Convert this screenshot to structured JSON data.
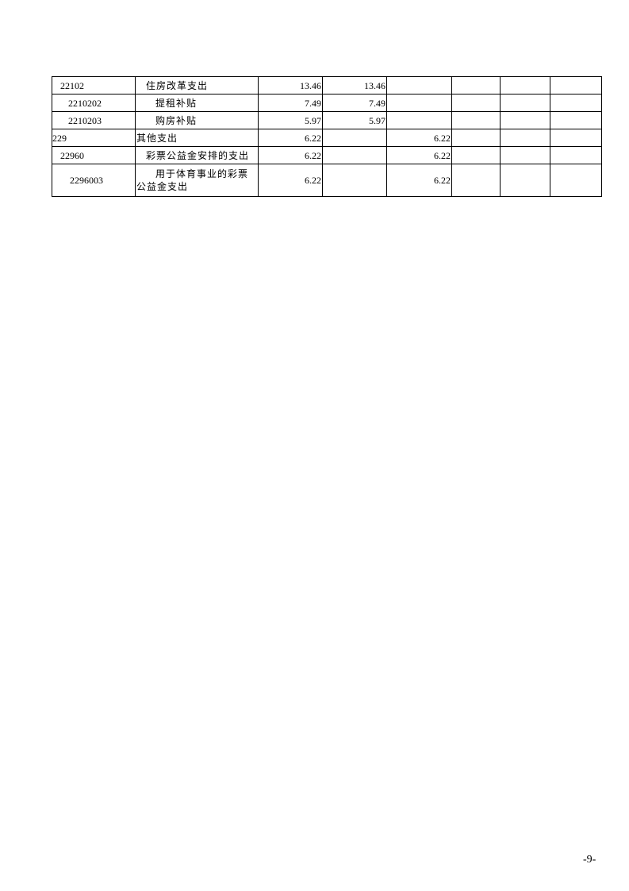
{
  "rows": [
    {
      "code": "22102",
      "code_indent": 1,
      "name": "住房改革支出",
      "name_indent": 1,
      "c1": "13.46",
      "c2": "13.46",
      "c3": ""
    },
    {
      "code": "2210202",
      "code_indent": 2,
      "name": "提租补贴",
      "name_indent": 2,
      "c1": "7.49",
      "c2": "7.49",
      "c3": ""
    },
    {
      "code": "2210203",
      "code_indent": 2,
      "name": "购房补贴",
      "name_indent": 2,
      "c1": "5.97",
      "c2": "5.97",
      "c3": ""
    },
    {
      "code": "229",
      "code_indent": 0,
      "name": "其他支出",
      "name_indent": 0,
      "c1": "6.22",
      "c2": "",
      "c3": "6.22"
    },
    {
      "code": "22960",
      "code_indent": 1,
      "name": "彩票公益金安排的支出",
      "name_indent": 1,
      "c1": "6.22",
      "c2": "",
      "c3": "6.22"
    },
    {
      "code": "2296003",
      "code_indent": 2,
      "name": "用于体育事业的彩票公益金支出",
      "name_indent": 2,
      "c1": "6.22",
      "c2": "",
      "c3": "6.22"
    }
  ],
  "page_number": "-9-"
}
